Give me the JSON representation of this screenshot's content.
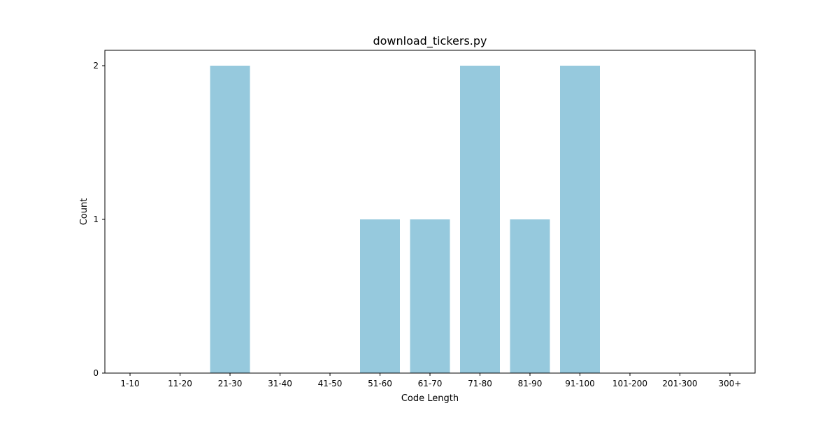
{
  "chart_data": {
    "type": "bar",
    "title": "download_tickers.py",
    "xlabel": "Code Length",
    "ylabel": "Count",
    "categories": [
      "1-10",
      "11-20",
      "21-30",
      "31-40",
      "41-50",
      "51-60",
      "61-70",
      "71-80",
      "81-90",
      "91-100",
      "101-200",
      "201-300",
      "300+"
    ],
    "values": [
      0,
      0,
      2,
      0,
      0,
      1,
      1,
      2,
      1,
      2,
      0,
      0,
      0
    ],
    "ylim": [
      0,
      2.1
    ],
    "yticks": [
      0,
      1,
      2
    ],
    "grid": false,
    "bar_color": "#96c9dd"
  }
}
